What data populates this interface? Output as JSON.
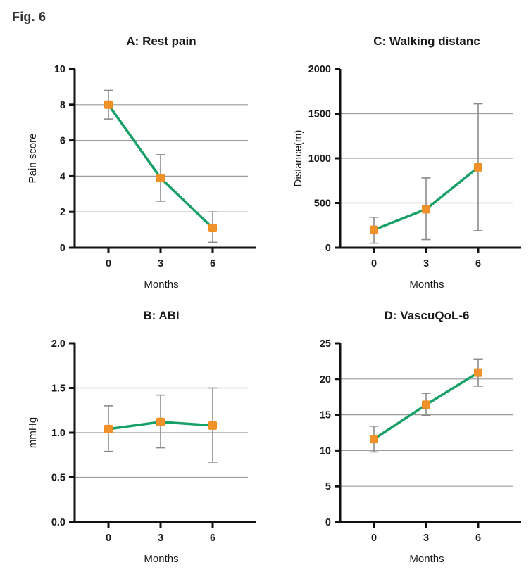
{
  "fig_label": "Fig. 6",
  "colors": {
    "line": "#17a067",
    "marker": "#f1912a",
    "marker_edge": "#ef8c1f",
    "error_bar": "#8a8a8a",
    "gridline": "#9c9c9c",
    "axis": "#111111",
    "text": "#1a1a1a"
  },
  "chart_data": [
    {
      "panel": "A",
      "type": "line",
      "title": "A: Rest pain",
      "xlabel": "Months",
      "ylabel": "Pain score",
      "categories": [
        "0",
        "3",
        "6"
      ],
      "values": [
        8.0,
        3.9,
        1.1
      ],
      "err_low": [
        7.2,
        2.6,
        0.3
      ],
      "err_high": [
        8.8,
        5.2,
        2.0
      ],
      "ylim": [
        0,
        10
      ],
      "yticks": [
        "0",
        "2",
        "4",
        "6",
        "8",
        "10"
      ],
      "grid": true,
      "legend": "none"
    },
    {
      "panel": "C",
      "type": "line",
      "title": "C: Walking distanc",
      "xlabel": "Months",
      "ylabel": "Distance(m)",
      "categories": [
        "0",
        "3",
        "6"
      ],
      "values": [
        200,
        430,
        900
      ],
      "err_low": [
        50,
        90,
        190
      ],
      "err_high": [
        340,
        780,
        1610
      ],
      "ylim": [
        0,
        2000
      ],
      "yticks": [
        "0",
        "500",
        "1000",
        "1500",
        "2000"
      ],
      "grid": true,
      "legend": "none"
    },
    {
      "panel": "B",
      "type": "line",
      "title": "B: ABI",
      "xlabel": "Months",
      "ylabel": "mmHg",
      "categories": [
        "0",
        "3",
        "6"
      ],
      "values": [
        1.04,
        1.12,
        1.08
      ],
      "err_low": [
        0.79,
        0.83,
        0.67
      ],
      "err_high": [
        1.3,
        1.42,
        1.5
      ],
      "ylim": [
        0,
        2
      ],
      "yticks": [
        "0.0",
        "0.5",
        "1.0",
        "1.5",
        "2.0"
      ],
      "grid": true,
      "legend": "none"
    },
    {
      "panel": "D",
      "type": "line",
      "title": "D: VascuQoL-6",
      "xlabel": "Months",
      "ylabel": "",
      "categories": [
        "0",
        "3",
        "6"
      ],
      "values": [
        11.6,
        16.4,
        20.9
      ],
      "err_low": [
        9.8,
        14.9,
        19.0
      ],
      "err_high": [
        13.4,
        18.0,
        22.8
      ],
      "ylim": [
        0,
        25
      ],
      "yticks": [
        "0",
        "5",
        "10",
        "15",
        "20",
        "25"
      ],
      "grid": true,
      "legend": "none"
    }
  ]
}
